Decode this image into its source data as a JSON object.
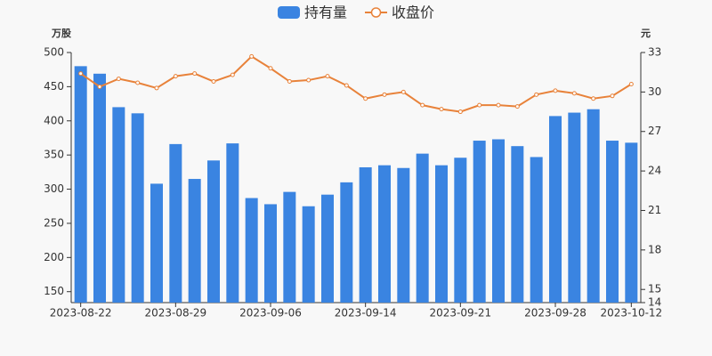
{
  "chart_data": {
    "type": "bar-line",
    "legend_position": "top",
    "y_label": "万股",
    "y2_label": "元",
    "categories": [
      "2023-08-22",
      null,
      null,
      null,
      null,
      "2023-08-29",
      null,
      null,
      null,
      null,
      "2023-09-06",
      null,
      null,
      null,
      null,
      "2023-09-14",
      null,
      null,
      null,
      null,
      "2023-09-21",
      null,
      null,
      null,
      null,
      "2023-09-28",
      null,
      null,
      null,
      "2023-10-12"
    ],
    "series": [
      {
        "name": "持有量",
        "type": "bar",
        "color": "#3a84e1",
        "axis": "y",
        "values": [
          480,
          469,
          420,
          411,
          308,
          366,
          315,
          342,
          367,
          287,
          278,
          296,
          275,
          292,
          310,
          332,
          335,
          331,
          352,
          335,
          346,
          371,
          373,
          363,
          347,
          407,
          412,
          417,
          371,
          368
        ]
      },
      {
        "name": "收盘价",
        "type": "line",
        "color": "#e8823a",
        "axis": "y2",
        "values": [
          31.4,
          30.4,
          31.0,
          30.7,
          30.3,
          31.2,
          31.4,
          30.8,
          31.3,
          32.7,
          31.8,
          30.8,
          30.9,
          31.2,
          30.5,
          29.5,
          29.8,
          30.0,
          29.0,
          28.7,
          28.5,
          29.0,
          29.0,
          28.9,
          29.8,
          30.1,
          29.9,
          29.5,
          29.7,
          30.6
        ]
      }
    ],
    "ylim": [
      134,
      500
    ],
    "yticks": [
      150,
      200,
      250,
      300,
      350,
      400,
      450,
      500
    ],
    "y2lim": [
      14,
      33
    ],
    "y2ticks": [
      14,
      15,
      18,
      21,
      24,
      27,
      30,
      33
    ],
    "grid": false
  }
}
